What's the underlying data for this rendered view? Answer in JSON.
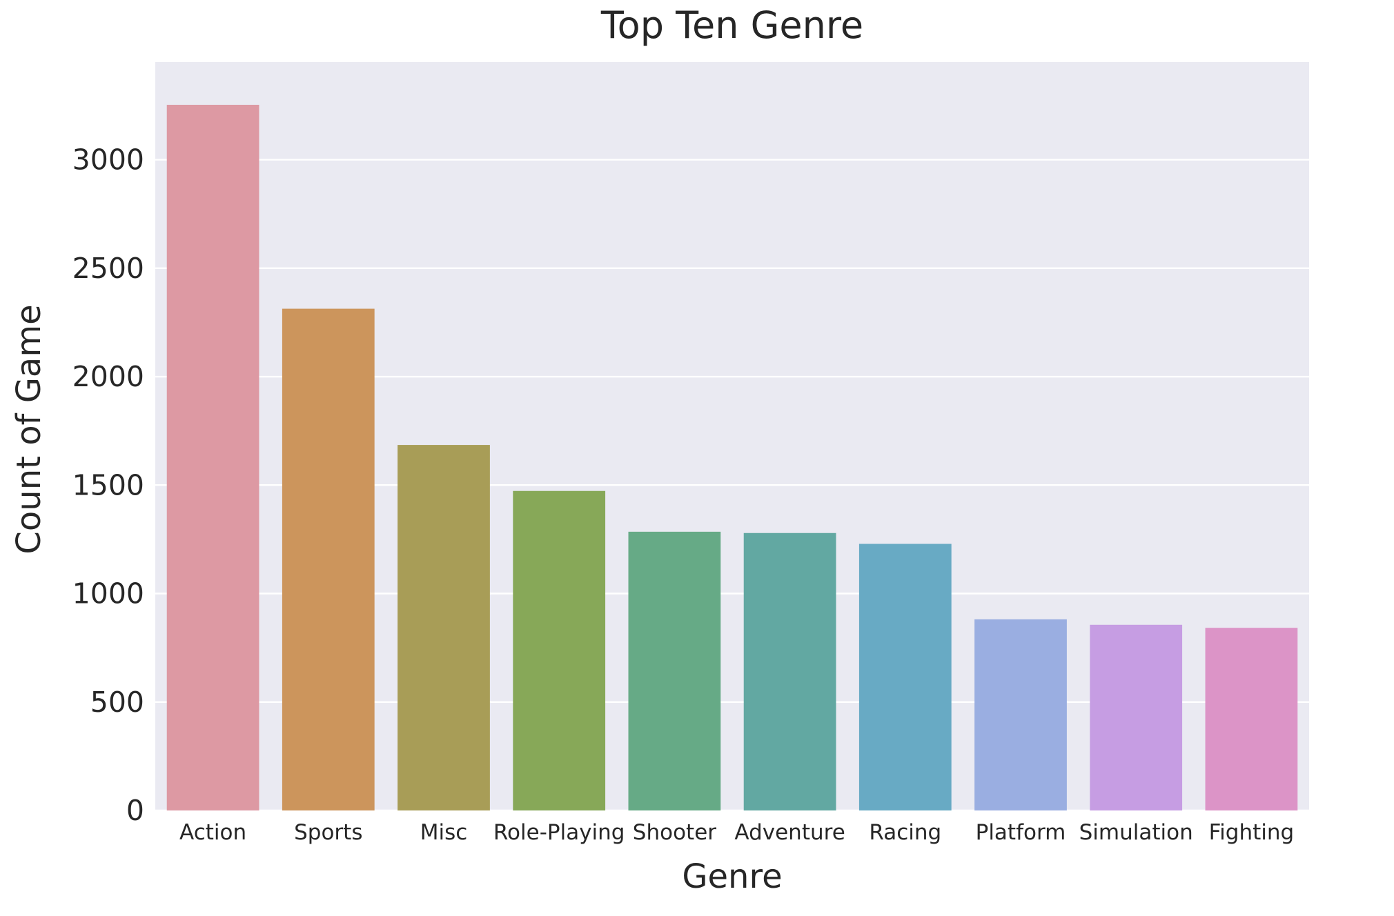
{
  "chart_data": {
    "type": "bar",
    "title": "Top Ten Genre",
    "xlabel": "Genre",
    "ylabel": "Count of Game",
    "categories": [
      "Action",
      "Sports",
      "Misc",
      "Role-Playing",
      "Shooter",
      "Adventure",
      "Racing",
      "Platform",
      "Simulation",
      "Fighting"
    ],
    "values": [
      3253,
      2313,
      1685,
      1473,
      1285,
      1279,
      1229,
      881,
      856,
      842
    ],
    "colors": [
      "#dd99a3",
      "#cc955c",
      "#a89d57",
      "#87a858",
      "#66aa86",
      "#62a8a2",
      "#68aac4",
      "#9aaee1",
      "#c69de3",
      "#dc94c7"
    ],
    "yticks": [
      0,
      500,
      1000,
      1500,
      2000,
      2500,
      3000
    ],
    "ytick_labels": [
      "0",
      "500",
      "1000",
      "1500",
      "2000",
      "2500",
      "3000"
    ],
    "ylim": [
      0,
      3450
    ],
    "grid": true,
    "legend": "none",
    "style": {
      "plot_background": "#eaeaf2",
      "grid_color": "#ffffff",
      "text_color": "#262626"
    }
  }
}
